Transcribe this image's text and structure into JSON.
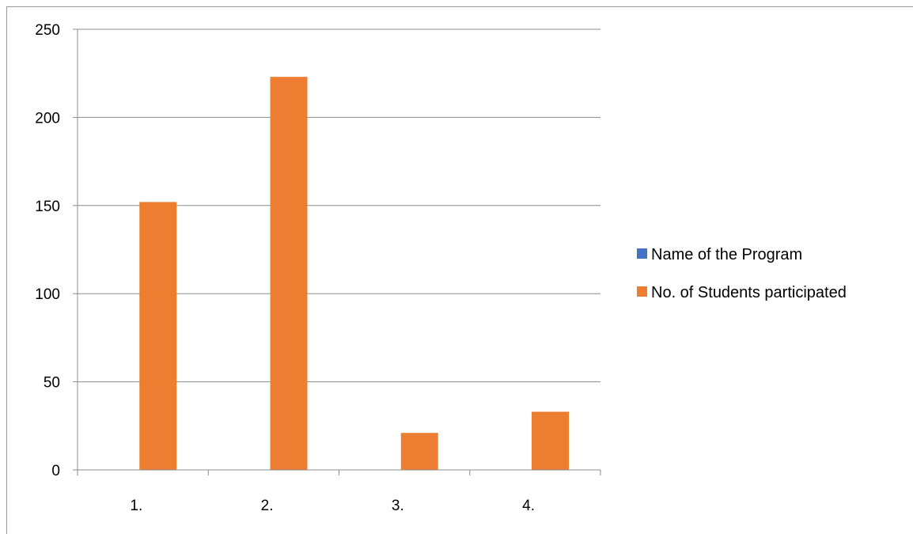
{
  "chart_data": {
    "type": "bar",
    "title": "",
    "xlabel": "",
    "ylabel": "",
    "categories": [
      "1.",
      "2.",
      "3.",
      "4."
    ],
    "series": [
      {
        "name": "Name of the Program",
        "color": "#4472c4",
        "values": [
          0,
          0,
          0,
          0
        ]
      },
      {
        "name": "No. of Students participated",
        "color": "#ed7d31",
        "values": [
          152,
          223,
          21,
          33
        ]
      }
    ],
    "ylim": [
      0,
      250
    ],
    "yticks": [
      0,
      50,
      100,
      150,
      200,
      250
    ],
    "grid": true,
    "legend_position": "right"
  }
}
